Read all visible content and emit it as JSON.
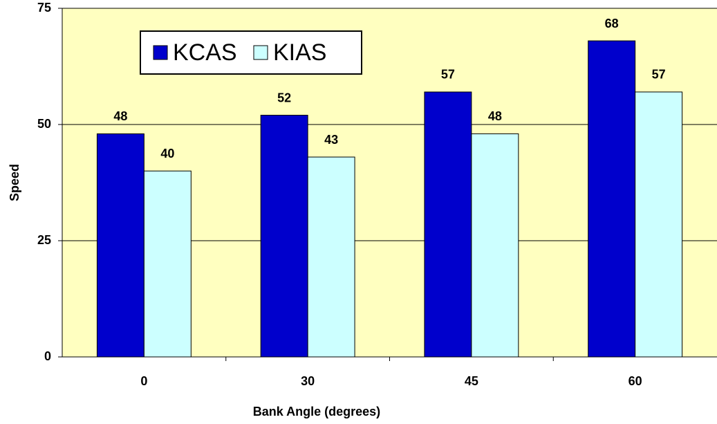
{
  "chart_data": {
    "type": "bar",
    "categories": [
      "0",
      "30",
      "45",
      "60"
    ],
    "series": [
      {
        "name": "KCAS",
        "color": "#0000cc",
        "values": [
          48,
          52,
          57,
          68
        ]
      },
      {
        "name": "KIAS",
        "color": "#ccffff",
        "values": [
          40,
          43,
          48,
          57
        ]
      }
    ],
    "ylim": [
      0,
      75
    ],
    "yticks": [
      0,
      25,
      50,
      75
    ],
    "xlabel": "Bank Angle (degrees)",
    "ylabel": "Speed",
    "grid": true,
    "legend": "upper left",
    "background": "#ffffc0"
  }
}
